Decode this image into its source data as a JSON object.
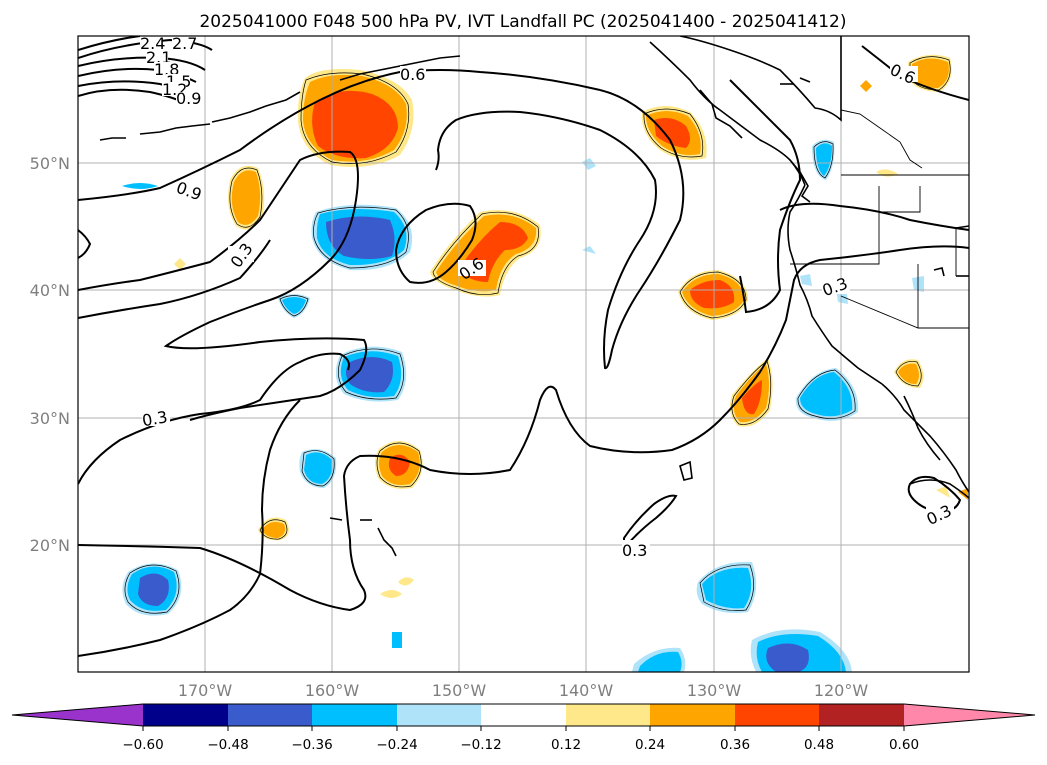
{
  "title": "2025041000 F048 500 hPa PV, IVT Landfall PC (2025041400 - 2025041412)",
  "map": {
    "lat_labels": [
      "50°N",
      "40°N",
      "30°N",
      "20°N"
    ],
    "lon_labels": [
      "170°W",
      "160°W",
      "150°W",
      "140°W",
      "130°W",
      "120°W"
    ],
    "contour_labels": [
      "2.4",
      "2.7",
      "2.1",
      "1.8",
      "1.5",
      "1.2",
      "0.9",
      "0.6",
      "0.9",
      "0.3",
      "0.6",
      "0.3",
      "0.3",
      "0.3",
      "0.3",
      "0.6"
    ]
  },
  "colorbar": {
    "labels": [
      "−0.60",
      "−0.48",
      "−0.36",
      "−0.24",
      "−0.12",
      "0.12",
      "0.24",
      "0.36",
      "0.48",
      "0.60"
    ],
    "colors": [
      "#9933cc",
      "#00008b",
      "#3a5bcc",
      "#00bfff",
      "#aee3fa",
      "#ffffff",
      "#ffe88a",
      "#ffa500",
      "#ff4500",
      "#b22222",
      "#ff88aa"
    ]
  }
}
